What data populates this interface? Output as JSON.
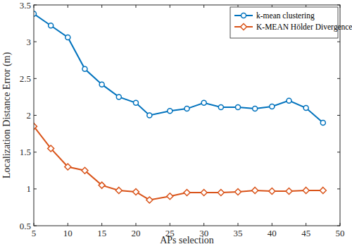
{
  "chart_data": {
    "type": "line",
    "x_label": "APs selection",
    "y_label": "Localization Distance Error (m)",
    "x": [
      5,
      7.5,
      10,
      12.5,
      15,
      17.5,
      20,
      22,
      25,
      27.5,
      30,
      32.5,
      35,
      37.5,
      40,
      42.5,
      45,
      47.5
    ],
    "series": [
      {
        "name": "k-mean clustering",
        "color": "#0072bd",
        "marker": "circle",
        "line_style": "solid",
        "values": [
          3.38,
          3.22,
          3.06,
          2.63,
          2.42,
          2.25,
          2.17,
          2.0,
          2.06,
          2.09,
          2.17,
          2.11,
          2.11,
          2.09,
          2.12,
          2.2,
          2.1,
          1.9
        ]
      },
      {
        "name": "K-MEAN  Hölder Divergence",
        "color": "#d95319",
        "marker": "diamond",
        "line_style": "solid",
        "values": [
          1.85,
          1.55,
          1.3,
          1.25,
          1.05,
          0.98,
          0.96,
          0.85,
          0.9,
          0.95,
          0.95,
          0.95,
          0.96,
          0.98,
          0.97,
          0.97,
          0.98,
          0.98
        ]
      }
    ],
    "xlim": [
      5,
      50
    ],
    "xticks": [
      5,
      10,
      15,
      20,
      25,
      30,
      35,
      40,
      45,
      50
    ],
    "ylim": [
      0.5,
      3.5
    ],
    "yticks": [
      0.5,
      1,
      1.5,
      2,
      2.5,
      3,
      3.5
    ],
    "grid": false,
    "legend": "top-right"
  }
}
